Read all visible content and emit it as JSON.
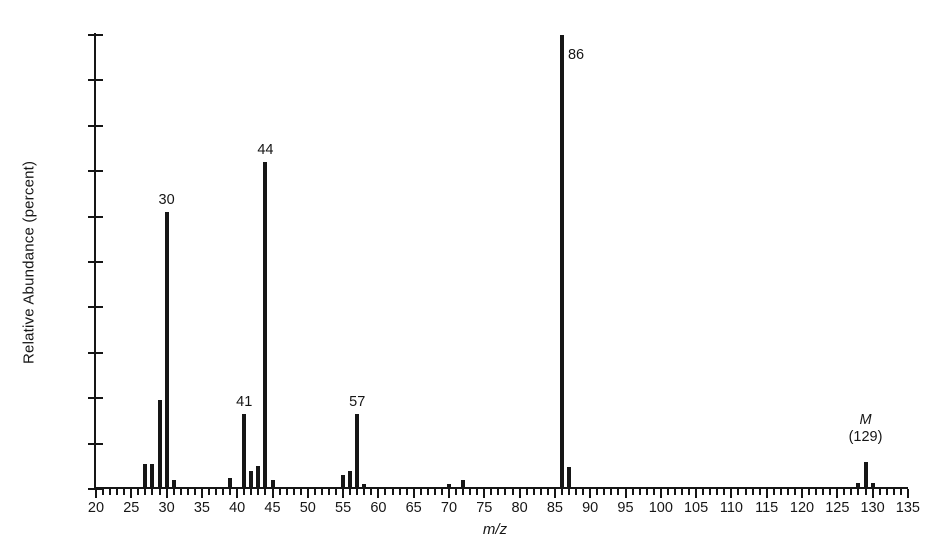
{
  "chart_data": {
    "type": "bar",
    "subtype": "mass-spectrum",
    "title": "",
    "xlabel": "m/z",
    "ylabel": "Relative Abundance (percent)",
    "x_axis": {
      "min": 20,
      "max": 135,
      "major_tick_step": 5,
      "minor_tick_step": 1,
      "tick_labels": [
        20,
        25,
        30,
        35,
        40,
        45,
        50,
        55,
        60,
        65,
        70,
        75,
        80,
        85,
        90,
        95,
        100,
        105,
        110,
        115,
        120,
        125,
        130,
        135
      ]
    },
    "y_axis": {
      "min": 0,
      "max": 100,
      "tick_step": 10,
      "unit": "percent",
      "tick_labels_shown": false,
      "grid": false
    },
    "molecular_ion": {
      "mz": 129,
      "symbol": "M"
    },
    "peaks": [
      {
        "mz": 27,
        "intensity": 5.5
      },
      {
        "mz": 28,
        "intensity": 5.5
      },
      {
        "mz": 29,
        "intensity": 19.5
      },
      {
        "mz": 30,
        "intensity": 61,
        "label": "30"
      },
      {
        "mz": 31,
        "intensity": 2
      },
      {
        "mz": 39,
        "intensity": 2.5
      },
      {
        "mz": 41,
        "intensity": 16.5,
        "label": "41"
      },
      {
        "mz": 42,
        "intensity": 4
      },
      {
        "mz": 43,
        "intensity": 5
      },
      {
        "mz": 44,
        "intensity": 72,
        "label": "44"
      },
      {
        "mz": 45,
        "intensity": 2
      },
      {
        "mz": 55,
        "intensity": 3
      },
      {
        "mz": 56,
        "intensity": 4
      },
      {
        "mz": 57,
        "intensity": 16.5,
        "label": "57"
      },
      {
        "mz": 58,
        "intensity": 1.2
      },
      {
        "mz": 70,
        "intensity": 1
      },
      {
        "mz": 72,
        "intensity": 2
      },
      {
        "mz": 86,
        "intensity": 100,
        "label": "86",
        "label_pos": "right"
      },
      {
        "mz": 87,
        "intensity": 4.8
      },
      {
        "mz": 128,
        "intensity": 1.3
      },
      {
        "mz": 129,
        "intensity": 6,
        "label_lines": [
          {
            "text": "M",
            "italic": true
          },
          {
            "text": "(129)"
          }
        ]
      },
      {
        "mz": 130,
        "intensity": 1.3
      }
    ],
    "colors": {
      "ink": "#161616",
      "background": "#ffffff"
    }
  }
}
